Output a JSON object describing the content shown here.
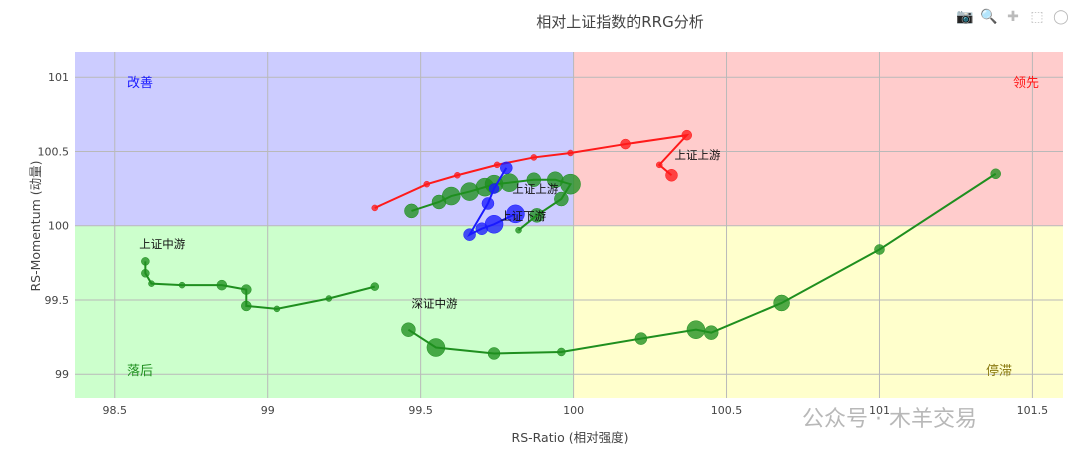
{
  "toolbar": {
    "icons": [
      "camera-icon",
      "zoom-icon",
      "pan-icon",
      "box-select-icon",
      "lasso-icon"
    ]
  },
  "watermark": "公众号 · 木羊交易",
  "colors": {
    "improving_bg": "#ccccff",
    "leading_bg": "#ffcccc",
    "lagging_bg": "#ccffcc",
    "weakening_bg": "#ffffcc",
    "red": "#ff1a1a",
    "blue": "#1a1aff",
    "green": "#1f8f1f",
    "weakening_text": "#8a7a10"
  },
  "chart_data": {
    "type": "scatter",
    "title": "相对上证指数的RRG分析",
    "xlabel": "RS-Ratio (相对强度)",
    "ylabel": "RS-Momentum (动量)",
    "xlim": [
      98.37,
      101.6
    ],
    "ylim": [
      98.84,
      101.17
    ],
    "x_ticks": [
      98.5,
      99,
      99.5,
      100,
      100.5,
      101,
      101.5
    ],
    "x_tick_labels": [
      "98.5",
      "99",
      "99.5",
      "100",
      "100.5",
      "101",
      "101.5"
    ],
    "y_ticks": [
      99,
      99.5,
      100,
      100.5,
      101
    ],
    "y_tick_labels": [
      "99",
      "99.5",
      "100",
      "100.5",
      "101"
    ],
    "grid": true,
    "quadrants": [
      {
        "label": "改善",
        "position": "top-left",
        "color": "blue"
      },
      {
        "label": "领先",
        "position": "top-right",
        "color": "red"
      },
      {
        "label": "落后",
        "position": "bottom-left",
        "color": "green"
      },
      {
        "label": "停滞",
        "position": "bottom-right",
        "color": "weakening_text"
      }
    ],
    "series": [
      {
        "name": "上证上游",
        "color": "red",
        "x": [
          99.35,
          99.52,
          99.62,
          99.75,
          99.87,
          99.99,
          100.17,
          100.37,
          100.28,
          100.32
        ],
        "y": [
          100.12,
          100.28,
          100.34,
          100.41,
          100.46,
          100.49,
          100.55,
          100.61,
          100.41,
          100.34
        ],
        "size": [
          3,
          3,
          3,
          3,
          3,
          3,
          5,
          5,
          3,
          6
        ],
        "label_x": 100.33,
        "label_y": 100.45
      },
      {
        "name": "上证上游",
        "color": "green",
        "x": [
          99.47,
          99.56,
          99.6,
          99.66,
          99.71,
          99.74,
          99.79,
          99.87,
          99.94,
          99.99,
          99.96,
          99.88,
          99.82
        ],
        "y": [
          100.1,
          100.16,
          100.2,
          100.23,
          100.26,
          100.28,
          100.29,
          100.31,
          100.31,
          100.28,
          100.18,
          100.07,
          99.97
        ],
        "size": [
          7,
          7,
          9,
          9,
          9,
          9,
          9,
          7,
          8,
          10,
          7,
          7,
          3
        ],
        "label_x": 99.8,
        "label_y": 100.22
      },
      {
        "name": "上证下游",
        "color": "blue",
        "x": [
          99.78,
          99.74,
          99.72,
          99.66,
          99.7,
          99.74,
          99.81
        ],
        "y": [
          100.39,
          100.25,
          100.15,
          99.94,
          99.98,
          100.01,
          100.08
        ],
        "size": [
          6,
          5,
          6,
          6,
          6,
          9,
          9
        ],
        "label_x": 99.76,
        "label_y": 100.04
      },
      {
        "name": "上证中游",
        "color": "green",
        "x": [
          99.35,
          99.2,
          99.03,
          98.93,
          98.93,
          98.85,
          98.72,
          98.62,
          98.6,
          98.6
        ],
        "y": [
          99.59,
          99.51,
          99.44,
          99.46,
          99.57,
          99.6,
          99.6,
          99.61,
          99.68,
          99.76
        ],
        "size": [
          4,
          3,
          3,
          5,
          5,
          5,
          3,
          3,
          4,
          4
        ],
        "label_x": 98.58,
        "label_y": 99.85
      },
      {
        "name": "深证中游",
        "color": "green",
        "x": [
          99.46,
          99.55,
          99.74,
          99.96,
          100.22,
          100.4,
          100.45,
          100.68,
          101.0,
          101.38
        ],
        "y": [
          99.3,
          99.18,
          99.14,
          99.15,
          99.24,
          99.3,
          99.28,
          99.48,
          99.84,
          100.35
        ],
        "size": [
          7,
          9,
          6,
          4,
          6,
          9,
          7,
          8,
          5,
          5
        ],
        "label_x": 99.47,
        "label_y": 99.45
      }
    ]
  }
}
